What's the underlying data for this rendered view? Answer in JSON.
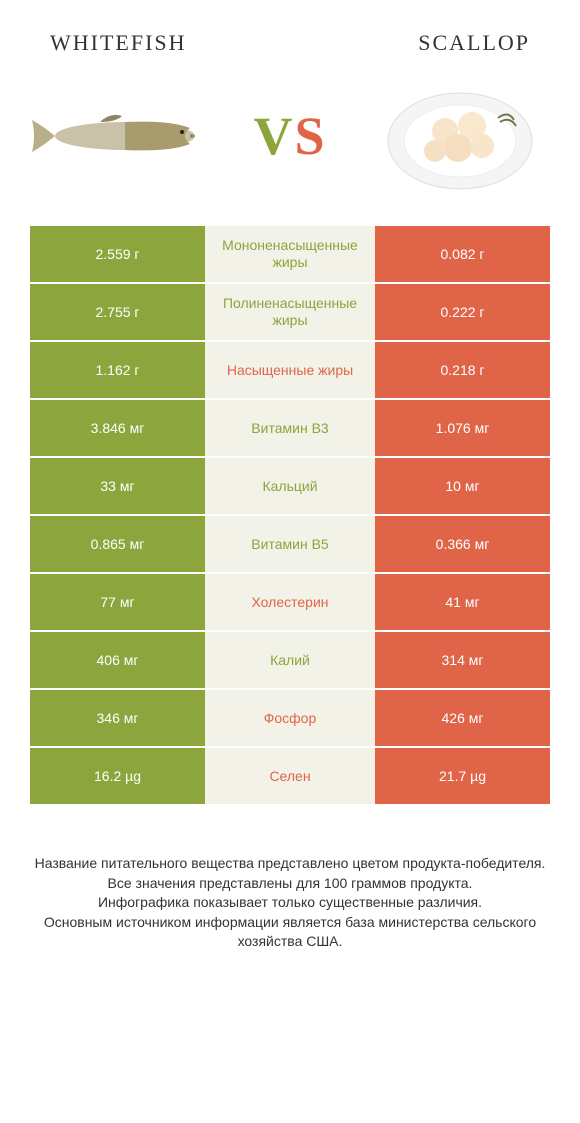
{
  "colors": {
    "left_bg": "#8ca53c",
    "right_bg": "#e06548",
    "mid_bg": "#f2f2e8",
    "left_text": "#ffffff",
    "right_text": "#ffffff",
    "winner_left_label": "#8ca53c",
    "winner_right_label": "#e06548"
  },
  "header": {
    "left_title": "WHITEFISH",
    "right_title": "SCALLOP",
    "vs_v": "V",
    "vs_s": "S"
  },
  "rows": [
    {
      "left": "2.559 г",
      "label": "Мононенасыщенные жиры",
      "right": "0.082 г",
      "winner": "left"
    },
    {
      "left": "2.755 г",
      "label": "Полиненасыщенные жиры",
      "right": "0.222 г",
      "winner": "left"
    },
    {
      "left": "1.162 г",
      "label": "Насыщенные жиры",
      "right": "0.218 г",
      "winner": "right"
    },
    {
      "left": "3.846 мг",
      "label": "Витамин B3",
      "right": "1.076 мг",
      "winner": "left"
    },
    {
      "left": "33 мг",
      "label": "Кальций",
      "right": "10 мг",
      "winner": "left"
    },
    {
      "left": "0.865 мг",
      "label": "Витамин B5",
      "right": "0.366 мг",
      "winner": "left"
    },
    {
      "left": "77 мг",
      "label": "Холестерин",
      "right": "41 мг",
      "winner": "right"
    },
    {
      "left": "406 мг",
      "label": "Калий",
      "right": "314 мг",
      "winner": "left"
    },
    {
      "left": "346 мг",
      "label": "Фосфор",
      "right": "426 мг",
      "winner": "right"
    },
    {
      "left": "16.2 µg",
      "label": "Селен",
      "right": "21.7 µg",
      "winner": "right"
    }
  ],
  "footnote": {
    "line1": "Название питательного вещества представлено цветом продукта-победителя.",
    "line2": "Все значения представлены для 100 граммов продукта.",
    "line3": "Инфографика показывает только существенные различия.",
    "line4": "Основным источником информации является база министерства сельского хозяйства США."
  }
}
